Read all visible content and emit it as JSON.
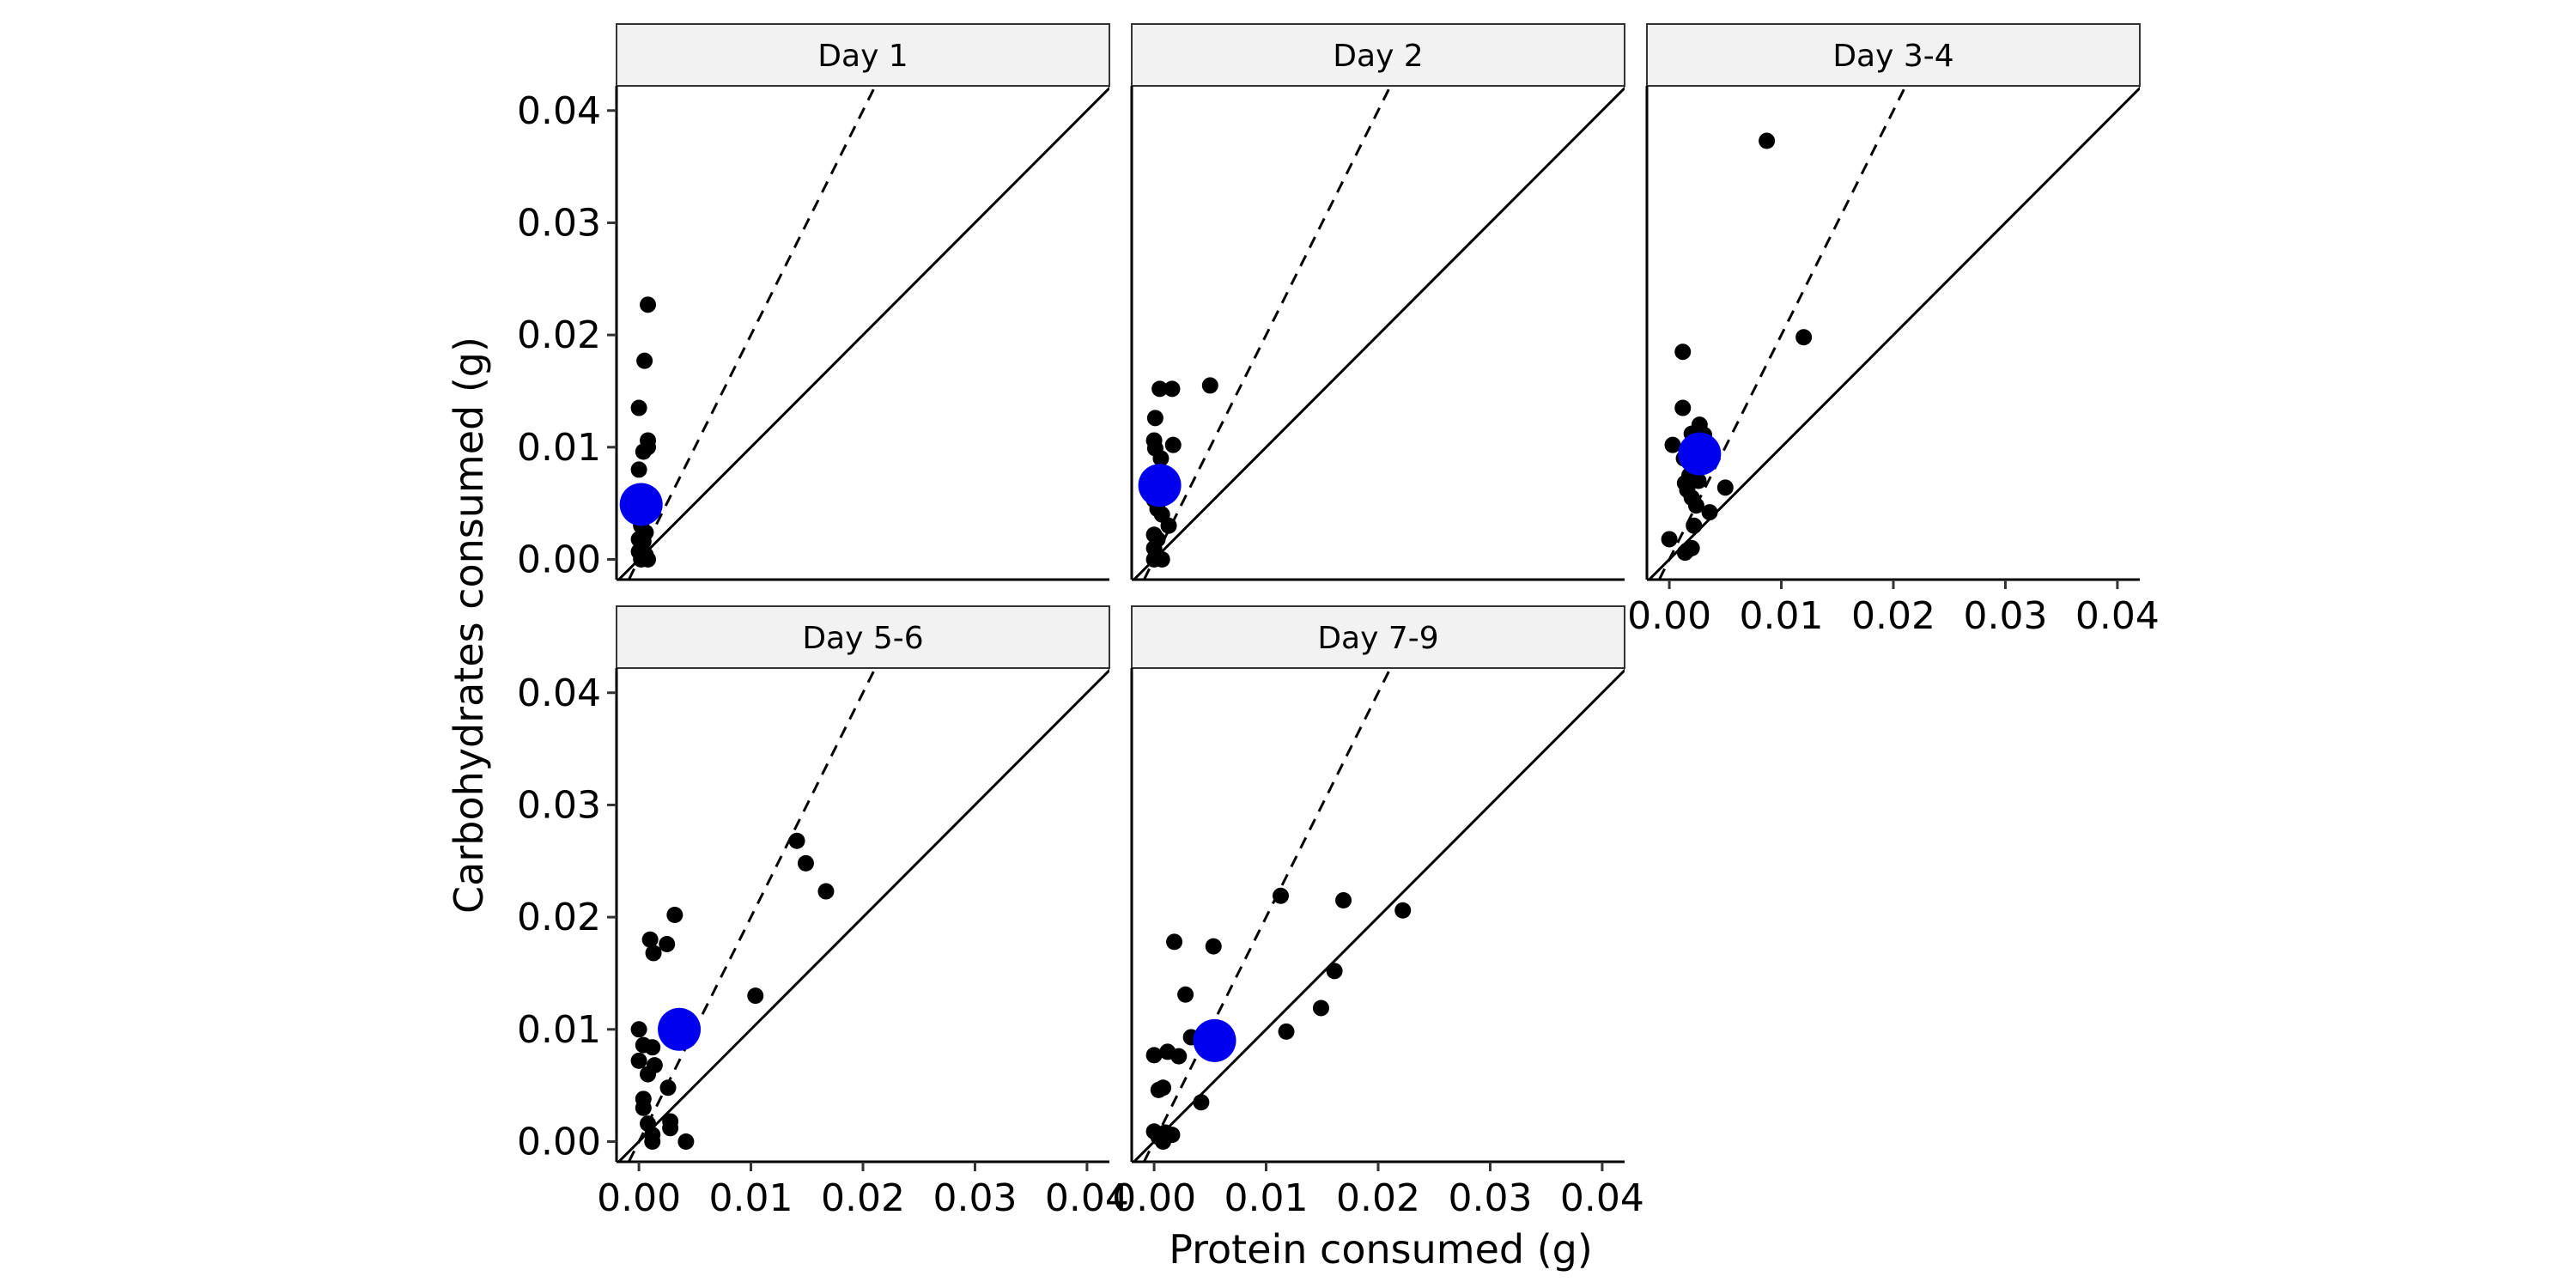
{
  "chart_data": {
    "type": "scatter",
    "xlabel": "Protein consumed (g)",
    "ylabel": "Carbohydrates consumed (g)",
    "xlim": [
      -0.002,
      0.042
    ],
    "ylim": [
      -0.0018,
      0.0422
    ],
    "x_ticks": [
      0.0,
      0.01,
      0.02,
      0.03,
      0.04
    ],
    "y_ticks": [
      0.0,
      0.01,
      0.02,
      0.03,
      0.04
    ],
    "x_tick_labels": [
      "0.00",
      "0.01",
      "0.02",
      "0.03",
      "0.04"
    ],
    "y_tick_labels": [
      "0.00",
      "0.01",
      "0.02",
      "0.03",
      "0.04"
    ],
    "reference_lines": {
      "solid": {
        "style": "solid",
        "slope": 1
      },
      "dashed": {
        "style": "dashed",
        "slope": 2
      }
    },
    "colors": {
      "points": "#000000",
      "mean": "#0000ee",
      "strip_fill": "#f2f2f2"
    },
    "grid": false,
    "legend": "none",
    "panels": [
      {
        "title": "Day 1",
        "points": [
          [
            0.0008,
            0.0227
          ],
          [
            0.0005,
            0.0177
          ],
          [
            0.0,
            0.0135
          ],
          [
            0.0,
            0.008
          ],
          [
            0.0008,
            0.0106
          ],
          [
            0.0004,
            0.0096
          ],
          [
            0.0008,
            0.01
          ],
          [
            0.0003,
            0.006
          ],
          [
            0.0002,
            0.005
          ],
          [
            0.0004,
            0.0044
          ],
          [
            0.001,
            0.0046
          ],
          [
            0.0002,
            0.003
          ],
          [
            0.0006,
            0.0024
          ],
          [
            0.0,
            0.0018
          ],
          [
            0.0004,
            0.0016
          ],
          [
            0.0002,
            0.001
          ],
          [
            0.0,
            0.0007
          ],
          [
            0.0006,
            0.0004
          ],
          [
            0.0004,
            0.0002
          ],
          [
            0.0008,
            0.0
          ],
          [
            0.0002,
            0.0
          ]
        ],
        "mean": [
          0.0002,
          0.0049
        ]
      },
      {
        "title": "Day 2",
        "points": [
          [
            0.0005,
            0.0152
          ],
          [
            0.0016,
            0.0152
          ],
          [
            0.005,
            0.0155
          ],
          [
            0.0001,
            0.0126
          ],
          [
            0.0,
            0.0106
          ],
          [
            0.0001,
            0.0099
          ],
          [
            0.0017,
            0.0102
          ],
          [
            0.0006,
            0.009
          ],
          [
            0.0003,
            0.0075
          ],
          [
            0.0001,
            0.006
          ],
          [
            0.0,
            0.0053
          ],
          [
            0.0003,
            0.0045
          ],
          [
            0.0007,
            0.004
          ],
          [
            0.0013,
            0.003
          ],
          [
            0.0,
            0.0022
          ],
          [
            0.0003,
            0.0018
          ],
          [
            0.0,
            0.001
          ],
          [
            0.0002,
            0.0004
          ],
          [
            0.0007,
            0.0
          ],
          [
            0.0,
            0.0
          ]
        ],
        "mean": [
          0.0005,
          0.0066
        ]
      },
      {
        "title": "Day 3-4",
        "points": [
          [
            0.0087,
            0.0373
          ],
          [
            0.012,
            0.0198
          ],
          [
            0.0012,
            0.0185
          ],
          [
            0.0012,
            0.0135
          ],
          [
            0.0003,
            0.0102
          ],
          [
            0.002,
            0.0112
          ],
          [
            0.0027,
            0.012
          ],
          [
            0.0031,
            0.0111
          ],
          [
            0.0013,
            0.009
          ],
          [
            0.0018,
            0.0075
          ],
          [
            0.0014,
            0.0068
          ],
          [
            0.0016,
            0.0062
          ],
          [
            0.002,
            0.0055
          ],
          [
            0.0026,
            0.007
          ],
          [
            0.005,
            0.0064
          ],
          [
            0.0024,
            0.0048
          ],
          [
            0.0036,
            0.0042
          ],
          [
            0.0022,
            0.003
          ],
          [
            0.0,
            0.0018
          ],
          [
            0.0016,
            0.0008
          ],
          [
            0.002,
            0.001
          ],
          [
            0.0014,
            0.0006
          ]
        ],
        "mean": [
          0.0027,
          0.0094
        ]
      },
      {
        "title": "Day 5-6",
        "points": [
          [
            0.0141,
            0.0268
          ],
          [
            0.0149,
            0.0248
          ],
          [
            0.0167,
            0.0223
          ],
          [
            0.0032,
            0.0202
          ],
          [
            0.001,
            0.018
          ],
          [
            0.0025,
            0.0176
          ],
          [
            0.0013,
            0.0168
          ],
          [
            0.0104,
            0.013
          ],
          [
            0.0,
            0.01
          ],
          [
            0.0012,
            0.0084
          ],
          [
            0.0004,
            0.0086
          ],
          [
            0.0,
            0.0072
          ],
          [
            0.0014,
            0.0068
          ],
          [
            0.0008,
            0.006
          ],
          [
            0.0026,
            0.0048
          ],
          [
            0.0004,
            0.0038
          ],
          [
            0.0004,
            0.003
          ],
          [
            0.0008,
            0.0016
          ],
          [
            0.0028,
            0.0018
          ],
          [
            0.0028,
            0.0012
          ],
          [
            0.0012,
            0.0006
          ],
          [
            0.0042,
            0.0
          ],
          [
            0.0012,
            0.0
          ]
        ],
        "mean": [
          0.0036,
          0.01
        ]
      },
      {
        "title": "Day 7-9",
        "points": [
          [
            0.0222,
            0.0206
          ],
          [
            0.0169,
            0.0215
          ],
          [
            0.0113,
            0.0219
          ],
          [
            0.0018,
            0.0178
          ],
          [
            0.0053,
            0.0174
          ],
          [
            0.0161,
            0.0152
          ],
          [
            0.0028,
            0.0131
          ],
          [
            0.0149,
            0.0119
          ],
          [
            0.0118,
            0.0098
          ],
          [
            0.0033,
            0.0093
          ],
          [
            0.0,
            0.0077
          ],
          [
            0.0012,
            0.008
          ],
          [
            0.0022,
            0.0076
          ],
          [
            0.0004,
            0.0046
          ],
          [
            0.0008,
            0.0048
          ],
          [
            0.0042,
            0.0035
          ],
          [
            0.0,
            0.0009
          ],
          [
            0.001,
            0.0008
          ],
          [
            0.0016,
            0.0006
          ],
          [
            0.0004,
            0.0004
          ],
          [
            0.0008,
            0.0
          ]
        ],
        "mean": [
          0.0054,
          0.009
        ]
      }
    ]
  }
}
